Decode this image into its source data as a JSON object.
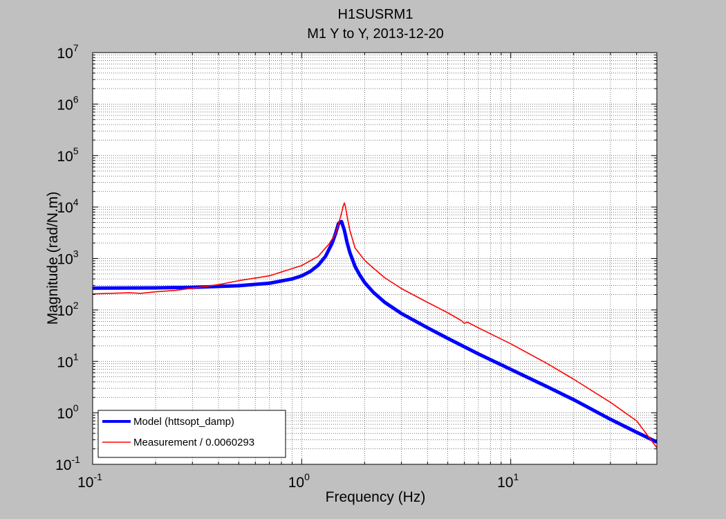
{
  "chart_data": {
    "type": "line",
    "title": "H1SUSRM1",
    "subtitle": "M1 Y to Y, 2013-12-20",
    "xlabel": "Frequency (Hz)",
    "ylabel": "Magnitude (rad/N.m)",
    "x_scale": "log",
    "y_scale": "log",
    "xlim": [
      0.1,
      50
    ],
    "ylim": [
      0.1,
      10000000
    ],
    "grid": true,
    "legend_position": "bottom-left",
    "x_ticks": [
      {
        "value": 0.1,
        "base": "10",
        "exp": "-1"
      },
      {
        "value": 1,
        "base": "10",
        "exp": "0"
      },
      {
        "value": 10,
        "base": "10",
        "exp": "1"
      }
    ],
    "y_ticks": [
      {
        "value": 0.1,
        "base": "10",
        "exp": "-1"
      },
      {
        "value": 1,
        "base": "10",
        "exp": "0"
      },
      {
        "value": 10,
        "base": "10",
        "exp": "1"
      },
      {
        "value": 100,
        "base": "10",
        "exp": "2"
      },
      {
        "value": 1000,
        "base": "10",
        "exp": "3"
      },
      {
        "value": 10000,
        "base": "10",
        "exp": "4"
      },
      {
        "value": 100000,
        "base": "10",
        "exp": "5"
      },
      {
        "value": 1000000,
        "base": "10",
        "exp": "6"
      },
      {
        "value": 10000000,
        "base": "10",
        "exp": "7"
      }
    ],
    "series": [
      {
        "name": "Model (httsopt_damp)",
        "color": "#0000ff",
        "x": [
          0.1,
          0.2,
          0.3,
          0.5,
          0.7,
          0.9,
          1.0,
          1.1,
          1.2,
          1.3,
          1.4,
          1.45,
          1.5,
          1.55,
          1.6,
          1.65,
          1.7,
          1.8,
          1.9,
          2.0,
          2.2,
          2.5,
          3.0,
          4.0,
          5.0,
          7.0,
          10,
          15,
          20,
          30,
          40,
          50
        ],
        "y": [
          265,
          268,
          275,
          295,
          330,
          400,
          460,
          560,
          740,
          1100,
          2000,
          3000,
          4800,
          5200,
          3500,
          2000,
          1300,
          700,
          470,
          340,
          220,
          140,
          85,
          45,
          28,
          14,
          7,
          3.2,
          1.8,
          0.75,
          0.42,
          0.27
        ]
      },
      {
        "name": "Measurement / 0.0060293",
        "color": "#ff0000",
        "x": [
          0.1,
          0.12,
          0.15,
          0.17,
          0.2,
          0.25,
          0.3,
          0.4,
          0.5,
          0.7,
          1.0,
          1.2,
          1.35,
          1.45,
          1.5,
          1.55,
          1.58,
          1.6,
          1.62,
          1.65,
          1.7,
          1.8,
          2.0,
          2.2,
          2.5,
          3.0,
          4.0,
          5.0,
          5.8,
          6.0,
          6.2,
          7.0,
          10,
          15,
          20,
          30,
          40,
          50
        ],
        "y": [
          205,
          210,
          215,
          210,
          225,
          240,
          265,
          310,
          370,
          460,
          730,
          1100,
          1900,
          3000,
          4700,
          7500,
          10500,
          12000,
          10000,
          6500,
          3500,
          1600,
          920,
          650,
          420,
          260,
          140,
          88,
          62,
          55,
          58,
          45,
          22,
          9,
          4.5,
          1.6,
          0.7,
          0.21
        ]
      }
    ]
  }
}
